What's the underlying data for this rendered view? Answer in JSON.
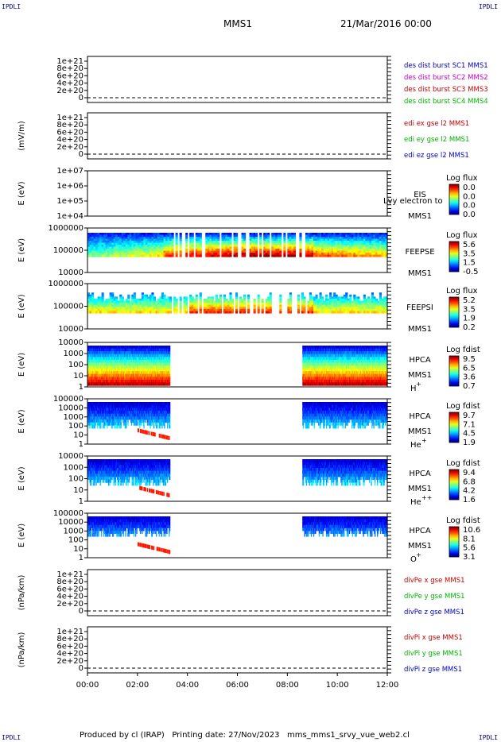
{
  "corners": {
    "tl": "IPDLI",
    "tr": "IPDLI",
    "bl": "IPDLI",
    "br": "IPDLI"
  },
  "header": {
    "spacecraft": "MMS1",
    "date": "21/Mar/2016 00:00"
  },
  "footer": "Produced by cl (IRAP)   Printing date: 27/Nov/2023   mms_mms1_srvy_vue_web2.cl",
  "colors": {
    "frame": "#000000",
    "dash": "#000000"
  },
  "chart_data": {
    "type": "multi-panel time series",
    "xaxis": {
      "ticks": [
        "00:00",
        "02:00",
        "04:00",
        "06:00",
        "08:00",
        "10:00",
        "12:00"
      ],
      "range_hours": [
        0,
        12
      ]
    },
    "panels": [
      {
        "id": "dist",
        "kind": "line",
        "ylabel": "",
        "yticks": [
          "1e+21",
          "8e+20",
          "6e+20",
          "4e+20",
          "2e+20",
          "0"
        ],
        "legend": [
          {
            "text": "des dist burst SC1 MMS1",
            "color": "#0000c8"
          },
          {
            "text": "des dist burst SC2 MMS2",
            "color": "#c800c8"
          },
          {
            "text": "des dist burst SC3 MMS3",
            "color": "#c80000"
          },
          {
            "text": "des dist burst SC4 MMS4",
            "color": "#00b400"
          }
        ]
      },
      {
        "id": "edi",
        "kind": "line",
        "ylabel": "(mV/m)",
        "yticks": [
          "1e+21",
          "8e+20",
          "6e+20",
          "4e+20",
          "2e+20",
          "0"
        ],
        "legend": [
          {
            "text": "edi ex gse l2 MMS1",
            "color": "#c80000"
          },
          {
            "text": "edi ey gse l2 MMS1",
            "color": "#00b400"
          },
          {
            "text": "edi ez gse l2 MMS1",
            "color": "#0000c8"
          }
        ]
      },
      {
        "id": "eis",
        "kind": "spectrogram",
        "ylabel": "E (eV)",
        "yticks": [
          "1e+07",
          "1e+06",
          "1e+05",
          "1e+04"
        ],
        "instrument": [
          "EIS",
          "MMS1"
        ],
        "overlay": "Lvy electron to",
        "cbar_title": "Log flux",
        "cbar_ticks": [
          "0.0",
          "0.0",
          "0.0",
          "0.0"
        ]
      },
      {
        "id": "feepse",
        "kind": "spectrogram",
        "ylabel": "E (eV)",
        "yticks": [
          "1000000",
          "100000",
          "10000"
        ],
        "instrument": [
          "FEEPSE",
          "MMS1"
        ],
        "cbar_title": "Log flux",
        "cbar_ticks": [
          "5.6",
          "3.5",
          "1.5",
          "-0.5"
        ]
      },
      {
        "id": "feepsi",
        "kind": "spectrogram",
        "ylabel": "E (eV)",
        "yticks": [
          "1000000",
          "100000",
          "10000"
        ],
        "instrument": [
          "FEEPSI",
          "MMS1"
        ],
        "cbar_title": "Log flux",
        "cbar_ticks": [
          "5.2",
          "3.5",
          "1.9",
          "0.2"
        ]
      },
      {
        "id": "hpca_h",
        "kind": "spectrogram",
        "ylabel": "E (eV)",
        "yticks": [
          "10000",
          "1000",
          "100",
          "10",
          "1"
        ],
        "instrument": [
          "HPCA",
          "MMS1"
        ],
        "species": "H",
        "charge": "+",
        "cbar_title": "Log fdist",
        "cbar_ticks": [
          "9.5",
          "6.5",
          "3.6",
          "0.7"
        ]
      },
      {
        "id": "hpca_he",
        "kind": "spectrogram",
        "ylabel": "E (eV)",
        "yticks": [
          "100000",
          "10000",
          "1000",
          "100",
          "10",
          "1"
        ],
        "instrument": [
          "HPCA",
          "MMS1"
        ],
        "species": "He",
        "charge": "+",
        "cbar_title": "Log fdist",
        "cbar_ticks": [
          "9.7",
          "7.1",
          "4.5",
          "1.9"
        ]
      },
      {
        "id": "hpca_he2",
        "kind": "spectrogram",
        "ylabel": "E (eV)",
        "yticks": [
          "10000",
          "1000",
          "100",
          "10",
          "1"
        ],
        "instrument": [
          "HPCA",
          "MMS1"
        ],
        "species": "He",
        "charge": "++",
        "cbar_title": "Log fdist",
        "cbar_ticks": [
          "9.4",
          "6.8",
          "4.2",
          "1.6"
        ]
      },
      {
        "id": "hpca_o",
        "kind": "spectrogram",
        "ylabel": "E (eV)",
        "yticks": [
          "100000",
          "10000",
          "1000",
          "100",
          "10",
          "1"
        ],
        "instrument": [
          "HPCA",
          "MMS1"
        ],
        "species": "O",
        "charge": "+",
        "cbar_title": "Log fdist",
        "cbar_ticks": [
          "10.6",
          "8.1",
          "5.6",
          "3.1"
        ]
      },
      {
        "id": "divpe",
        "kind": "line",
        "ylabel": "(nPa/km)",
        "yticks": [
          "1e+21",
          "8e+20",
          "6e+20",
          "4e+20",
          "2e+20",
          "0"
        ],
        "legend": [
          {
            "text": "divPe x gse MMS1",
            "color": "#c80000"
          },
          {
            "text": "divPe y gse MMS1",
            "color": "#00b400"
          },
          {
            "text": "divPe z gse MMS1",
            "color": "#0000c8"
          }
        ]
      },
      {
        "id": "divpi",
        "kind": "line",
        "ylabel": "(nPa/km)",
        "yticks": [
          "1e+21",
          "8e+20",
          "6e+20",
          "4e+20",
          "2e+20",
          "0"
        ],
        "legend": [
          {
            "text": "divPi x gse MMS1",
            "color": "#c80000"
          },
          {
            "text": "divPi y gse MMS1",
            "color": "#00b400"
          },
          {
            "text": "divPi z gse MMS1",
            "color": "#0000c8"
          }
        ]
      }
    ],
    "hpca_data_gap_hours": [
      3.3,
      8.6
    ]
  }
}
